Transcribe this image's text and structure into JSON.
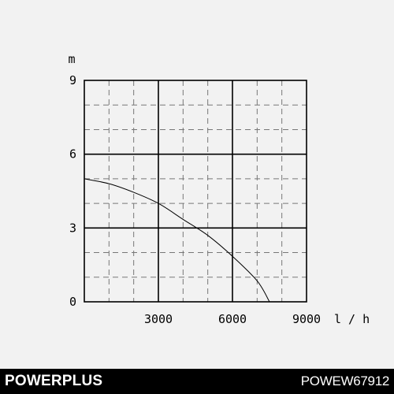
{
  "chart_data": {
    "type": "line",
    "xlabel": "l/h",
    "ylabel": "m",
    "xlim": [
      0,
      9000
    ],
    "ylim": [
      0,
      9
    ],
    "x_ticks": [
      3000,
      6000,
      9000
    ],
    "y_ticks": [
      0,
      3,
      6,
      9
    ],
    "grid": "major solid every 3000 l/h and 3 m, minor dashed every 1000 l/h and 1 m",
    "series": [
      {
        "x": [
          0,
          1000,
          2000,
          3000,
          4000,
          5000,
          6000,
          7000,
          7500
        ],
        "y": [
          5.0,
          4.8,
          4.45,
          4.0,
          3.35,
          2.7,
          1.85,
          0.85,
          0.0
        ],
        "color": "#000000"
      }
    ]
  },
  "footer": {
    "brand": "POWERPLUS",
    "model": "POWEW67912",
    "background": "#000000",
    "text_color": "#ffffff"
  }
}
